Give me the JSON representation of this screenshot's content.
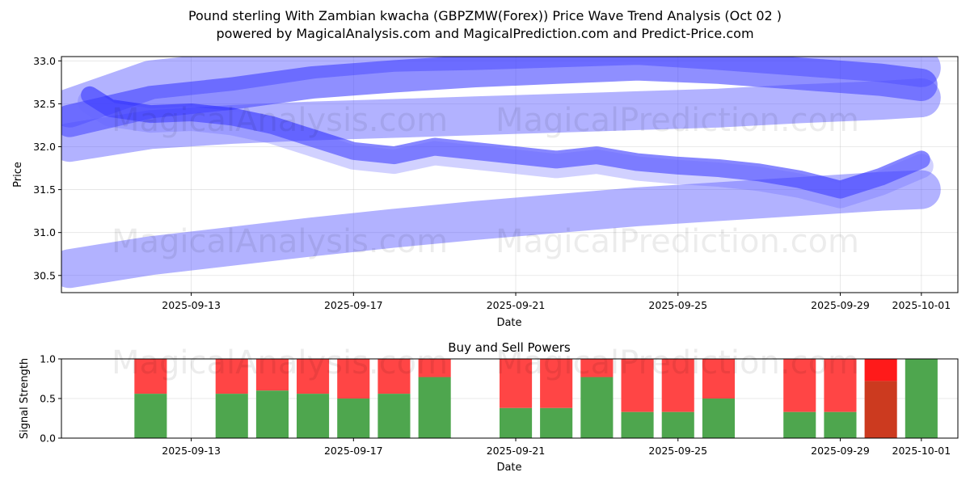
{
  "chart_data": [
    {
      "type": "line",
      "title_line1": "Pound sterling With Zambian kwacha (GBPZMW(Forex)) Price Wave Trend Analysis (Oct 02 )",
      "title_line2": "powered by MagicalAnalysis.com and MagicalPrediction.com and Predict-Price.com",
      "xlabel": "Date",
      "ylabel": "Price",
      "ylim": [
        30.3,
        33.05
      ],
      "yticks": [
        30.5,
        31.0,
        31.5,
        32.0,
        32.5,
        33.0
      ],
      "ytick_labels": [
        "30.5",
        "31.0",
        "31.5",
        "32.0",
        "32.5",
        "33.0"
      ],
      "xticks": [
        {
          "day": 3,
          "label": "2025-09-13"
        },
        {
          "day": 7,
          "label": "2025-09-17"
        },
        {
          "day": 11,
          "label": "2025-09-21"
        },
        {
          "day": 15,
          "label": "2025-09-25"
        },
        {
          "day": 19,
          "label": "2025-09-29"
        },
        {
          "day": 21,
          "label": "2025-10-01"
        }
      ],
      "xlim_days": [
        -0.2,
        21.9
      ],
      "day0_date": "2025-09-10",
      "series": [
        {
          "name": "upper trend band",
          "x": [
            0,
            2,
            4,
            6,
            8,
            10,
            12,
            14,
            16,
            18,
            20,
            21
          ],
          "values": [
            32.45,
            32.78,
            32.88,
            33.02,
            33.1,
            33.12,
            33.15,
            33.18,
            33.12,
            33.05,
            32.98,
            32.92
          ]
        },
        {
          "name": "main trend band",
          "x": [
            0,
            2,
            4,
            6,
            8,
            10,
            12,
            14,
            16,
            18,
            20,
            21
          ],
          "values": [
            32.3,
            32.52,
            32.62,
            32.75,
            32.82,
            32.88,
            32.92,
            32.96,
            32.92,
            32.85,
            32.78,
            32.72
          ]
        },
        {
          "name": "lower trend band",
          "x": [
            0,
            2,
            4,
            6,
            8,
            10,
            12,
            14,
            16,
            18,
            20,
            21
          ],
          "values": [
            32.05,
            32.2,
            32.26,
            32.3,
            32.33,
            32.36,
            32.39,
            32.42,
            32.45,
            32.5,
            32.54,
            32.57
          ]
        },
        {
          "name": "bottom trend band",
          "x": [
            0,
            2,
            4,
            6,
            8,
            10,
            12,
            14,
            16,
            18,
            20,
            21
          ],
          "values": [
            30.58,
            30.73,
            30.84,
            30.95,
            31.05,
            31.14,
            31.22,
            31.3,
            31.36,
            31.42,
            31.48,
            31.5
          ]
        },
        {
          "name": "price wave",
          "x": [
            0.5,
            1,
            2,
            3,
            4,
            5,
            6,
            7,
            8,
            9,
            10,
            11,
            12,
            13,
            14,
            15,
            16,
            17,
            18,
            19,
            20,
            21
          ],
          "values": [
            32.6,
            32.45,
            32.38,
            32.4,
            32.35,
            32.25,
            32.1,
            31.95,
            31.9,
            32.0,
            31.95,
            31.9,
            31.85,
            31.9,
            31.82,
            31.78,
            31.75,
            31.7,
            31.62,
            31.5,
            31.65,
            31.85
          ]
        }
      ]
    },
    {
      "type": "bar",
      "title": "Buy and Sell Powers",
      "xlabel": "Date",
      "ylabel": "Signal Strength",
      "ylim": [
        0,
        1.0
      ],
      "yticks": [
        0.0,
        0.5,
        1.0
      ],
      "ytick_labels": [
        "0.0",
        "0.5",
        "1.0"
      ],
      "xticks": [
        {
          "day": 3,
          "label": "2025-09-13"
        },
        {
          "day": 7,
          "label": "2025-09-17"
        },
        {
          "day": 11,
          "label": "2025-09-21"
        },
        {
          "day": 15,
          "label": "2025-09-25"
        },
        {
          "day": 19,
          "label": "2025-09-29"
        },
        {
          "day": 21,
          "label": "2025-10-01"
        }
      ],
      "xlim_days": [
        -0.2,
        21.9
      ],
      "day0_date": "2025-09-10",
      "colors": {
        "buy": "#4ea64e",
        "sell": "#ff4545",
        "buy_alt": "#cc3a1f",
        "sell_alt": "#ff1a1a"
      },
      "bars": [
        {
          "day": 2,
          "buy": 0.56
        },
        {
          "day": 4,
          "buy": 0.56
        },
        {
          "day": 5,
          "buy": 0.6
        },
        {
          "day": 6,
          "buy": 0.56
        },
        {
          "day": 7,
          "buy": 0.5
        },
        {
          "day": 8,
          "buy": 0.56
        },
        {
          "day": 9,
          "buy": 0.77
        },
        {
          "day": 11,
          "buy": 0.38
        },
        {
          "day": 12,
          "buy": 0.38
        },
        {
          "day": 13,
          "buy": 0.77
        },
        {
          "day": 14,
          "buy": 0.33
        },
        {
          "day": 15,
          "buy": 0.33
        },
        {
          "day": 16,
          "buy": 0.5
        },
        {
          "day": 18,
          "buy": 0.33
        },
        {
          "day": 19,
          "buy": 0.33
        },
        {
          "day": 20,
          "buy": 0.72,
          "alt": true
        },
        {
          "day": 21,
          "buy": 1.0
        }
      ]
    }
  ],
  "watermarks": [
    "MagicalAnalysis.com",
    "MagicalPrediction.com"
  ]
}
